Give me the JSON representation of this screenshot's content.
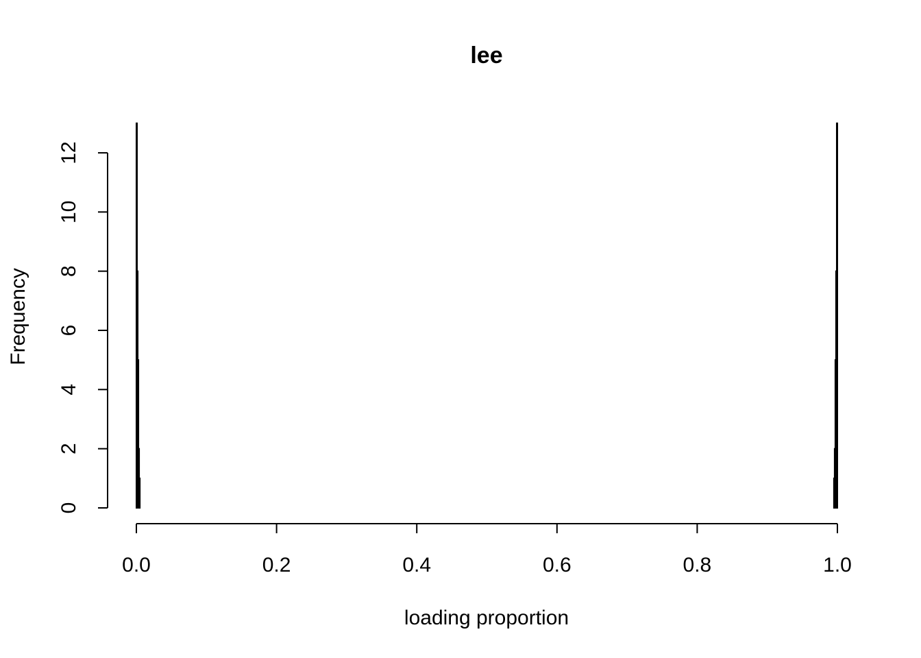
{
  "chart_data": {
    "type": "bar",
    "title": "lee",
    "xlabel": "loading proportion",
    "ylabel": "Frequency",
    "xlim": [
      0,
      1
    ],
    "ylim": [
      0,
      12
    ],
    "x_ticks": [
      "0.0",
      "0.2",
      "0.4",
      "0.6",
      "0.8",
      "1.0"
    ],
    "y_ticks": [
      "0",
      "2",
      "4",
      "6",
      "8",
      "10",
      "12"
    ],
    "bins": [
      {
        "x0": 0.0,
        "x1": 0.001,
        "count": 13
      },
      {
        "x0": 0.001,
        "x1": 0.002,
        "count": 8
      },
      {
        "x0": 0.002,
        "x1": 0.003,
        "count": 5
      },
      {
        "x0": 0.003,
        "x1": 0.004,
        "count": 2
      },
      {
        "x0": 0.004,
        "x1": 0.005,
        "count": 1
      },
      {
        "x0": 0.995,
        "x1": 0.996,
        "count": 1
      },
      {
        "x0": 0.996,
        "x1": 0.997,
        "count": 2
      },
      {
        "x0": 0.997,
        "x1": 0.998,
        "count": 5
      },
      {
        "x0": 0.998,
        "x1": 0.999,
        "count": 8
      },
      {
        "x0": 0.999,
        "x1": 1.0,
        "count": 13
      }
    ],
    "grid": false,
    "legend": "none"
  }
}
